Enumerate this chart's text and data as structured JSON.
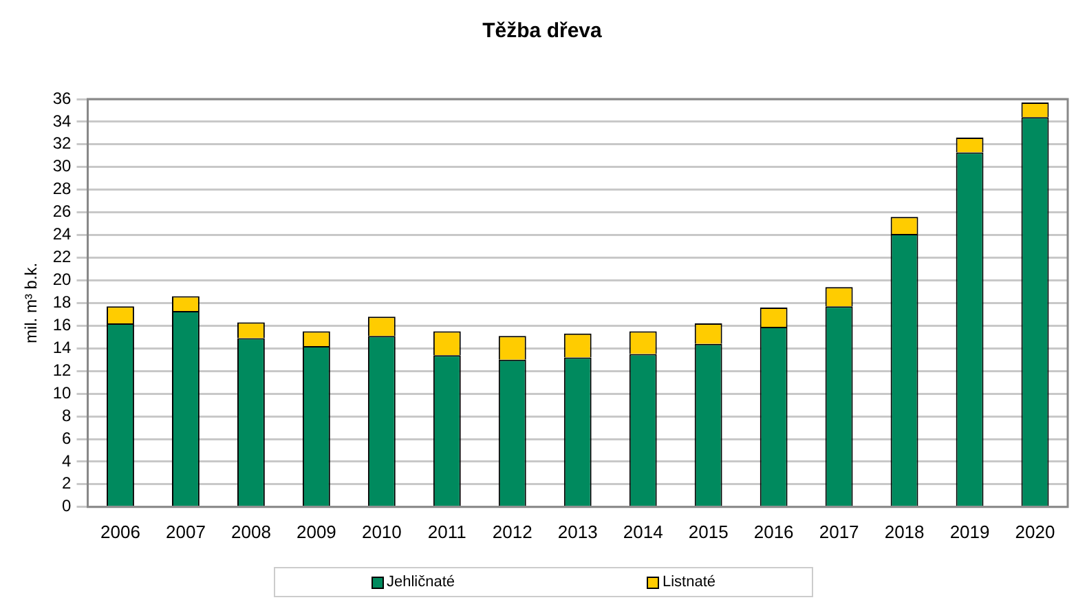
{
  "chart_data": {
    "type": "bar",
    "title": "Těžba dřeva",
    "ylabel": "mil. m³ b.k.",
    "categories": [
      "2006",
      "2007",
      "2008",
      "2009",
      "2010",
      "2011",
      "2012",
      "2013",
      "2014",
      "2015",
      "2016",
      "2017",
      "2018",
      "2019",
      "2020"
    ],
    "series": [
      {
        "name": "Jehličnaté",
        "color": "#008a5e",
        "values": [
          16.2,
          17.3,
          14.9,
          14.2,
          15.1,
          13.4,
          13.0,
          13.2,
          13.5,
          14.4,
          15.9,
          17.7,
          24.1,
          31.3,
          34.4
        ]
      },
      {
        "name": "Listnaté",
        "color": "#ffcc00",
        "values": [
          1.5,
          1.3,
          1.4,
          1.3,
          1.7,
          2.1,
          2.1,
          2.1,
          2.0,
          1.8,
          1.7,
          1.7,
          1.5,
          1.3,
          1.3
        ]
      }
    ],
    "stacked": true,
    "ylim": [
      0,
      36
    ],
    "yticks": [
      0,
      2,
      4,
      6,
      8,
      10,
      12,
      14,
      16,
      18,
      20,
      22,
      24,
      26,
      28,
      30,
      32,
      34,
      36
    ],
    "grid": "y",
    "legend": "bottom"
  }
}
